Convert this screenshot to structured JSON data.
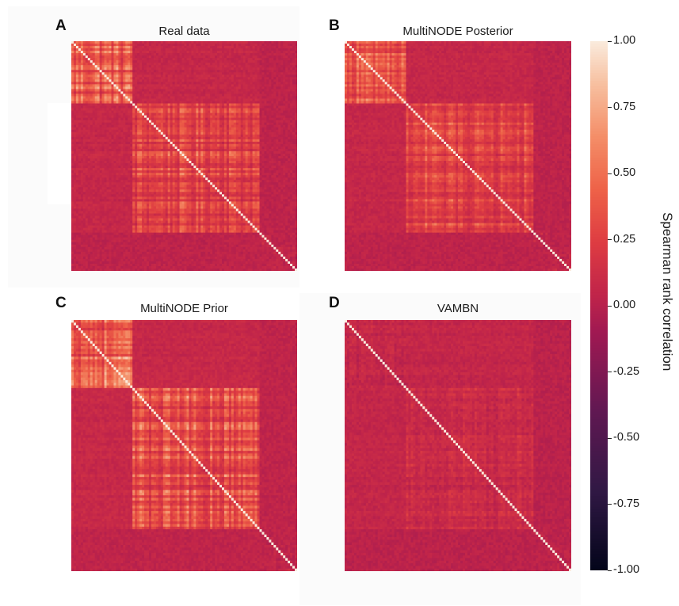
{
  "panels": [
    {
      "letter": "A",
      "title": "Real data"
    },
    {
      "letter": "B",
      "title": "MultiNODE Posterior"
    },
    {
      "letter": "C",
      "title": "MultiNODE Prior"
    },
    {
      "letter": "D",
      "title": "VAMBN"
    }
  ],
  "colorbar": {
    "label": "Spearman rank correlation",
    "ticks": [
      "1.00",
      "0.75",
      "0.50",
      "0.25",
      "0.00",
      "-0.25",
      "-0.50",
      "-0.75",
      "-1.00"
    ],
    "range": [
      -1.0,
      1.0
    ]
  },
  "chart_data": [
    {
      "type": "heatmap",
      "title": "Real data",
      "panel": "A",
      "value_range": [
        -1.0,
        1.0
      ],
      "blocks": [
        {
          "name": "block-1",
          "span": [
            0.0,
            0.27
          ],
          "within_corr": 0.75
        },
        {
          "name": "block-2",
          "span": [
            0.27,
            0.83
          ],
          "within_corr": 0.5
        },
        {
          "name": "block-3",
          "span": [
            0.83,
            0.9
          ],
          "within_corr": 0.1
        },
        {
          "name": "block-4",
          "span": [
            0.9,
            1.0
          ],
          "within_corr": 0.1
        }
      ],
      "diagonal": 1.0,
      "background_corr": 0.03
    },
    {
      "type": "heatmap",
      "title": "MultiNODE Posterior",
      "panel": "B",
      "value_range": [
        -1.0,
        1.0
      ],
      "blocks": [
        {
          "name": "block-1",
          "span": [
            0.0,
            0.27
          ],
          "within_corr": 0.7
        },
        {
          "name": "block-2",
          "span": [
            0.27,
            0.83
          ],
          "within_corr": 0.5
        },
        {
          "name": "block-3",
          "span": [
            0.83,
            0.9
          ],
          "within_corr": 0.1
        },
        {
          "name": "block-4",
          "span": [
            0.9,
            1.0
          ],
          "within_corr": 0.1
        }
      ],
      "diagonal": 1.0,
      "background_corr": 0.03
    },
    {
      "type": "heatmap",
      "title": "MultiNODE Prior",
      "panel": "C",
      "value_range": [
        -1.0,
        1.0
      ],
      "blocks": [
        {
          "name": "block-1",
          "span": [
            0.0,
            0.27
          ],
          "within_corr": 0.8
        },
        {
          "name": "block-2",
          "span": [
            0.27,
            0.83
          ],
          "within_corr": 0.6
        },
        {
          "name": "block-3",
          "span": [
            0.83,
            0.9
          ],
          "within_corr": 0.1
        },
        {
          "name": "block-4",
          "span": [
            0.9,
            1.0
          ],
          "within_corr": 0.1
        }
      ],
      "diagonal": 1.0,
      "background_corr": 0.04
    },
    {
      "type": "heatmap",
      "title": "VAMBN",
      "panel": "D",
      "value_range": [
        -1.0,
        1.0
      ],
      "blocks": [
        {
          "name": "block-1",
          "span": [
            0.0,
            0.27
          ],
          "within_corr": 0.12
        },
        {
          "name": "block-2",
          "span": [
            0.27,
            0.83
          ],
          "within_corr": 0.18
        },
        {
          "name": "block-3",
          "span": [
            0.83,
            0.9
          ],
          "within_corr": 0.05
        },
        {
          "name": "block-4",
          "span": [
            0.9,
            1.0
          ],
          "within_corr": 0.05
        }
      ],
      "diagonal": 1.0,
      "background_corr": 0.02
    }
  ]
}
